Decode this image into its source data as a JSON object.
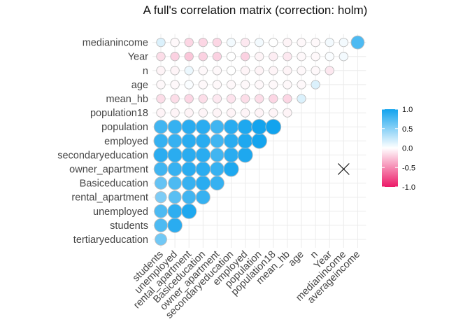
{
  "chart_data": {
    "type": "heatmap",
    "title": "A full's correlation matrix (correction: holm)",
    "variables": [
      "tertiaryeducation",
      "students",
      "unemployed",
      "rental_apartment",
      "Basiceducation",
      "owner_apartment",
      "secondaryeducation",
      "employed",
      "population",
      "population18",
      "mean_hb",
      "age",
      "n",
      "Year",
      "medianincome",
      "averageincome"
    ],
    "y_variables": [
      "tertiaryeducation",
      "students",
      "unemployed",
      "rental_apartment",
      "Basiceducation",
      "owner_apartment",
      "secondaryeducation",
      "employed",
      "population",
      "population18",
      "mean_hb",
      "age",
      "n",
      "Year",
      "medianincome"
    ],
    "x_variables": [
      "students",
      "unemployed",
      "rental_apartment",
      "Basiceducation",
      "owner_apartment",
      "secondaryeducation",
      "employed",
      "population",
      "population18",
      "mean_hb",
      "age",
      "n",
      "Year",
      "medianincome",
      "averageincome"
    ],
    "lower_triangle": [
      [
        0.6
      ],
      [
        0.75,
        0.9
      ],
      [
        0.75,
        0.88,
        0.95
      ],
      [
        0.55,
        0.7,
        0.8,
        0.85
      ],
      [
        0.65,
        0.75,
        0.85,
        0.9,
        0.85
      ],
      [
        0.8,
        0.85,
        0.9,
        0.9,
        0.85,
        0.95
      ],
      [
        0.9,
        0.9,
        0.9,
        0.9,
        0.8,
        0.9,
        0.95
      ],
      [
        0.85,
        0.85,
        0.9,
        0.9,
        0.8,
        0.9,
        0.95,
        0.99
      ],
      [
        0.8,
        0.85,
        0.9,
        0.9,
        0.8,
        0.9,
        0.95,
        0.99,
        1.0
      ],
      [
        -0.05,
        -0.05,
        -0.05,
        -0.05,
        -0.05,
        -0.05,
        -0.05,
        -0.05,
        -0.05,
        -0.05
      ],
      [
        -0.15,
        -0.15,
        -0.18,
        -0.15,
        -0.1,
        -0.12,
        -0.15,
        -0.15,
        -0.18,
        -0.18,
        0.15
      ],
      [
        -0.03,
        -0.03,
        0.02,
        -0.03,
        -0.03,
        -0.03,
        -0.03,
        -0.03,
        -0.03,
        -0.03,
        -0.03,
        0.15
      ],
      [
        -0.05,
        -0.05,
        0.08,
        -0.03,
        -0.03,
        0.0,
        -0.05,
        -0.05,
        -0.05,
        -0.05,
        -0.03,
        -0.03,
        -0.1
      ],
      [
        -0.15,
        -0.2,
        -0.25,
        -0.2,
        -0.2,
        0.0,
        -0.2,
        -0.05,
        -0.08,
        -0.1,
        -0.03,
        -0.03,
        0.02,
        0.05
      ],
      [
        0.15,
        -0.03,
        -0.18,
        -0.18,
        -0.18,
        0.05,
        -0.1,
        0.05,
        0.0,
        -0.05,
        -0.03,
        -0.03,
        0.05,
        0.05,
        0.75
      ]
    ],
    "nonsignificant_marks": [
      {
        "row": "owner_apartment",
        "col": "medianincome"
      }
    ],
    "legend": {
      "ticks": [
        1.0,
        0.5,
        0.0,
        -0.5,
        -1.0
      ],
      "tick_labels": [
        "1.0",
        "0.5",
        "0.0",
        "-0.5",
        "-1.0"
      ],
      "colors": {
        "high": "#12a3ee",
        "mid": "#ffffff",
        "low": "#ec1967"
      },
      "placement": "right"
    },
    "limits": [
      -1,
      1
    ],
    "grid": true
  }
}
